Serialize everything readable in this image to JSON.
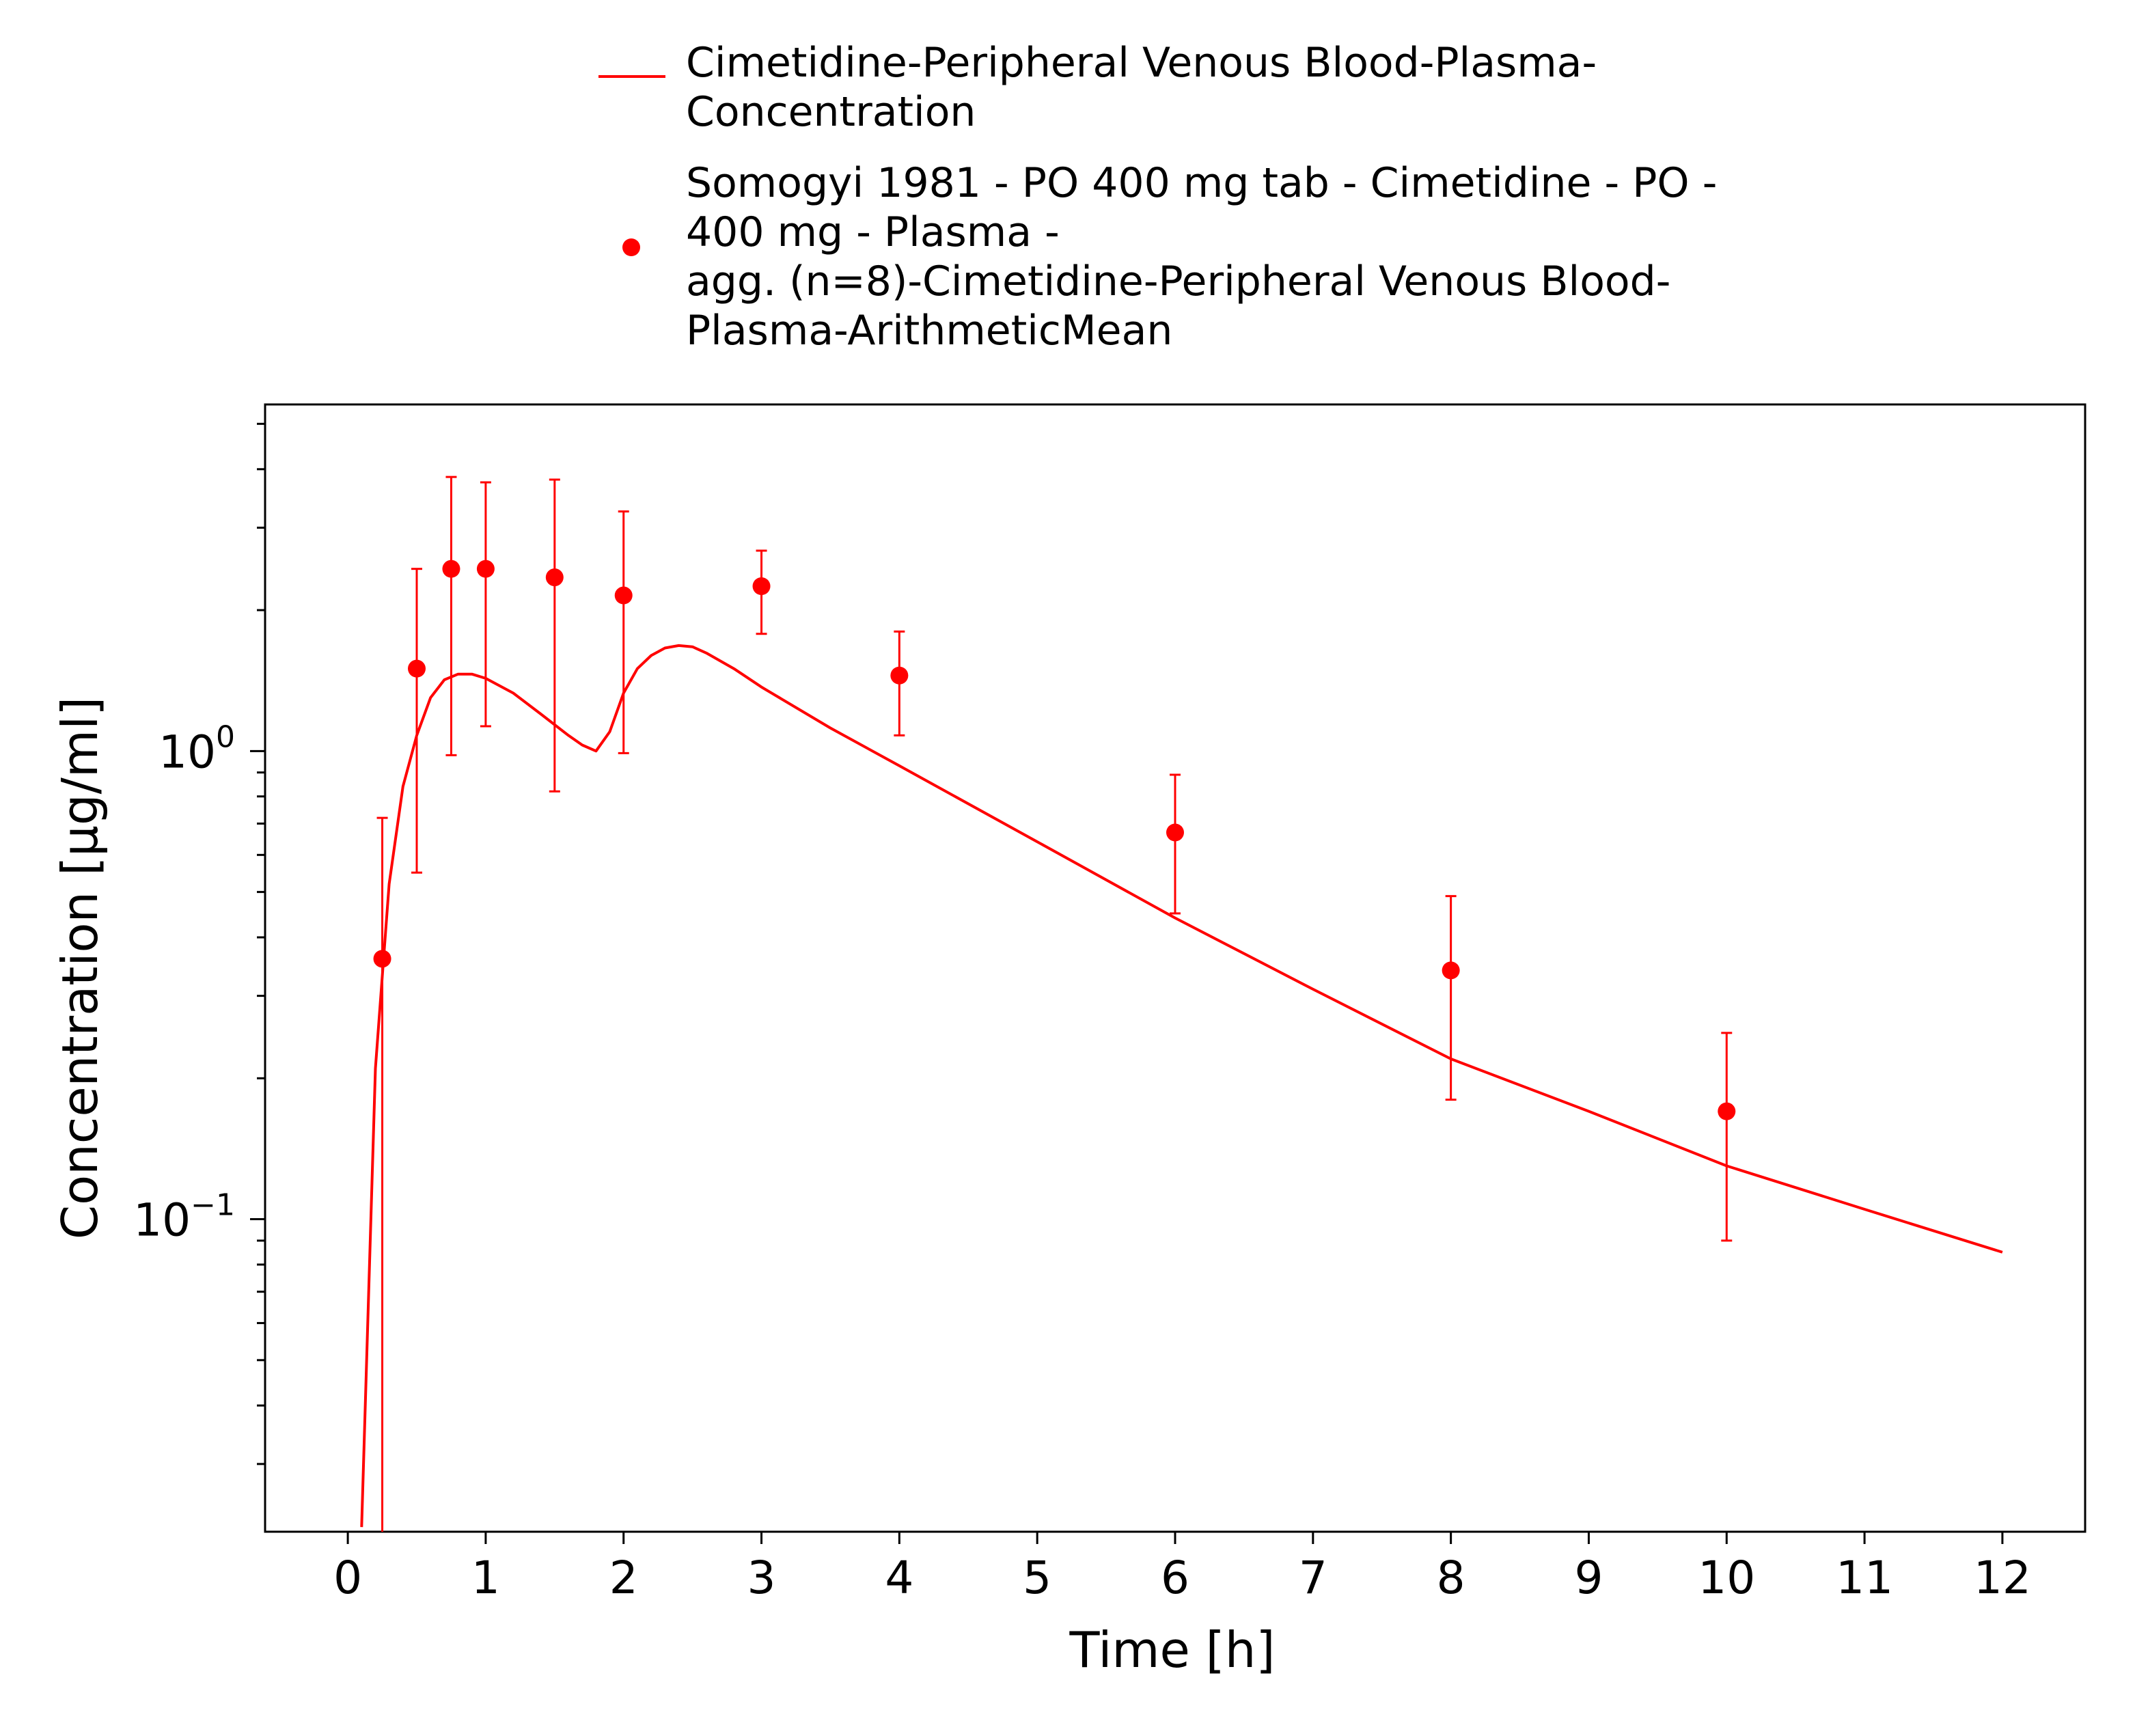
{
  "colors": {
    "series": "#ff0000",
    "axis": "#000000",
    "background": "#ffffff"
  },
  "legend": {
    "placement": "top",
    "items": [
      {
        "marker": "line",
        "lines": [
          "Cimetidine-Peripheral Venous Blood-Plasma-",
          "Concentration"
        ]
      },
      {
        "marker": "dot",
        "lines": [
          "Somogyi 1981 - PO 400 mg tab - Cimetidine - PO -",
          "400 mg - Plasma -",
          "agg. (n=8)-Cimetidine-Peripheral Venous Blood-",
          "Plasma-ArithmeticMean"
        ]
      }
    ]
  },
  "chart_data": {
    "type": "line",
    "xlabel": "Time [h]",
    "ylabel": "Concentration [µg/ml]",
    "xlim": [
      -0.6,
      12.6
    ],
    "ylim": [
      0.0215,
      5.5
    ],
    "yscale": "log",
    "grid": false,
    "xticks": [
      0,
      1,
      2,
      3,
      4,
      5,
      6,
      7,
      8,
      9,
      10,
      11,
      12
    ],
    "xtick_labels": [
      "0",
      "1",
      "2",
      "3",
      "4",
      "5",
      "6",
      "7",
      "8",
      "9",
      "10",
      "11",
      "12"
    ],
    "yticks": [
      {
        "value": 0.1,
        "base": "10",
        "exp": "−1"
      },
      {
        "value": 1,
        "base": "10",
        "exp": "0"
      }
    ],
    "series": [
      {
        "kind": "line",
        "x": [
          0.1,
          0.2,
          0.3,
          0.4,
          0.5,
          0.6,
          0.7,
          0.8,
          0.9,
          1.0,
          1.2,
          1.4,
          1.6,
          1.7,
          1.8,
          1.9,
          2.0,
          2.1,
          2.2,
          2.3,
          2.4,
          2.5,
          2.6,
          2.8,
          3.0,
          3.5,
          4.0,
          5.0,
          6.0,
          7.0,
          8.0,
          9.0,
          10.0,
          11.0,
          12.0
        ],
        "y": [
          0.022,
          0.21,
          0.52,
          0.84,
          1.08,
          1.3,
          1.42,
          1.46,
          1.46,
          1.43,
          1.33,
          1.2,
          1.08,
          1.03,
          1.0,
          1.1,
          1.33,
          1.5,
          1.6,
          1.66,
          1.68,
          1.67,
          1.62,
          1.5,
          1.37,
          1.12,
          0.93,
          0.64,
          0.44,
          0.31,
          0.22,
          0.17,
          0.13,
          0.105,
          0.085
        ]
      },
      {
        "kind": "scatter",
        "x": [
          0.25,
          0.5,
          0.75,
          1.0,
          1.5,
          2.0,
          3.0,
          4.0,
          6.0,
          8.0,
          10.0
        ],
        "y": [
          0.36,
          1.5,
          2.45,
          2.45,
          2.35,
          2.15,
          2.25,
          1.45,
          0.67,
          0.34,
          0.17
        ],
        "error_low": [
          0.0,
          0.55,
          0.98,
          1.13,
          0.82,
          0.99,
          1.78,
          1.08,
          0.45,
          0.18,
          0.09
        ],
        "error_high": [
          0.72,
          2.45,
          3.85,
          3.75,
          3.8,
          3.25,
          2.68,
          1.8,
          0.89,
          0.49,
          0.25
        ]
      }
    ]
  }
}
